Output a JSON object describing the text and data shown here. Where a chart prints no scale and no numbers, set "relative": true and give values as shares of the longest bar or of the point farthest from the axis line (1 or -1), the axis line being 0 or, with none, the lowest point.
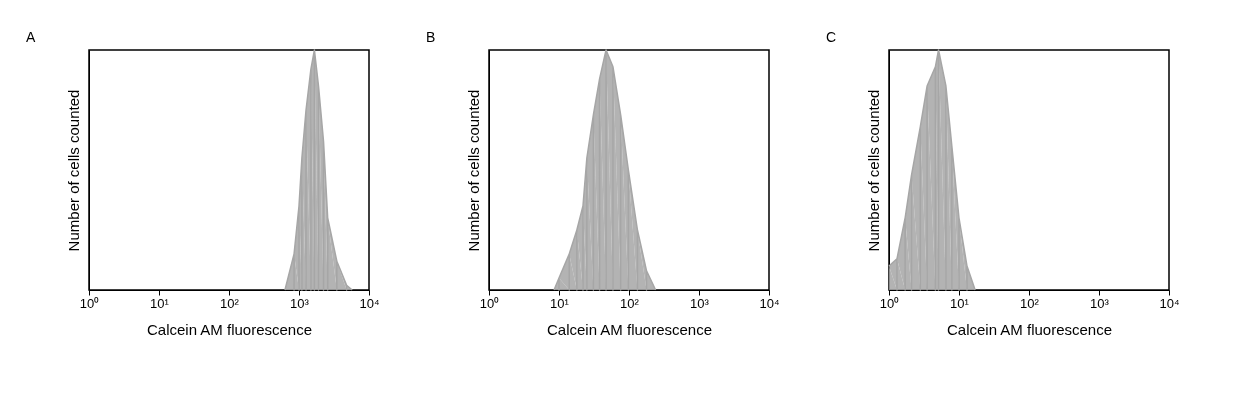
{
  "chart_data": [
    {
      "type": "area",
      "title": "A",
      "xlabel": "Calcein AM fluorescence",
      "ylabel": "Number of cells counted",
      "relative": true,
      "log": "x",
      "grid": false,
      "xlim": [
        1,
        10000
      ],
      "xticks": [
        {
          "value": 1,
          "label": "10⁰"
        },
        {
          "value": 10,
          "label": "10¹"
        },
        {
          "value": 100,
          "label": "10²"
        },
        {
          "value": 1000,
          "label": "10³"
        },
        {
          "value": 10000,
          "label": "10⁴"
        }
      ],
      "x": [
        630,
        850,
        1000,
        1100,
        1260,
        1480,
        1660,
        1900,
        2240,
        2570,
        3470,
        4790,
        5750
      ],
      "series": [
        {
          "color": "#a6a6a6",
          "values": [
            0,
            0.15,
            0.35,
            0.55,
            0.75,
            0.92,
            1.0,
            0.85,
            0.62,
            0.3,
            0.12,
            0.02,
            0
          ]
        }
      ]
    },
    {
      "type": "area",
      "title": "B",
      "xlabel": "Calcein AM fluorescence",
      "ylabel": "Number of cells counted",
      "relative": true,
      "log": "x",
      "grid": false,
      "xlim": [
        1,
        10000
      ],
      "xticks": [
        {
          "value": 1,
          "label": "10⁰"
        },
        {
          "value": 10,
          "label": "10¹"
        },
        {
          "value": 100,
          "label": "10²"
        },
        {
          "value": 1000,
          "label": "10³"
        },
        {
          "value": 10000,
          "label": "10⁴"
        }
      ],
      "x": [
        8.5,
        10,
        14,
        18,
        22,
        25,
        31,
        38,
        47,
        59,
        76,
        98,
        132,
        178,
        240
      ],
      "series": [
        {
          "color": "#a6a6a6",
          "values": [
            0,
            0.05,
            0.15,
            0.25,
            0.35,
            0.55,
            0.73,
            0.88,
            1.0,
            0.93,
            0.73,
            0.5,
            0.25,
            0.08,
            0
          ]
        }
      ]
    },
    {
      "type": "area",
      "title": "C",
      "xlabel": "Calcein AM fluorescence",
      "ylabel": "Number of cells counted",
      "relative": true,
      "log": "x",
      "grid": false,
      "xlim": [
        1,
        10000
      ],
      "xticks": [
        {
          "value": 1,
          "label": "10⁰"
        },
        {
          "value": 10,
          "label": "10¹"
        },
        {
          "value": 100,
          "label": "10²"
        },
        {
          "value": 1000,
          "label": "10³"
        },
        {
          "value": 10000,
          "label": "10⁴"
        }
      ],
      "x": [
        1,
        1.3,
        1.7,
        2.1,
        2.8,
        3.5,
        4.6,
        5.1,
        6.5,
        7.9,
        10,
        13,
        17
      ],
      "series": [
        {
          "color": "#a6a6a6",
          "values": [
            0.1,
            0.13,
            0.3,
            0.48,
            0.68,
            0.85,
            0.93,
            1.0,
            0.85,
            0.6,
            0.3,
            0.1,
            0
          ]
        }
      ]
    }
  ]
}
